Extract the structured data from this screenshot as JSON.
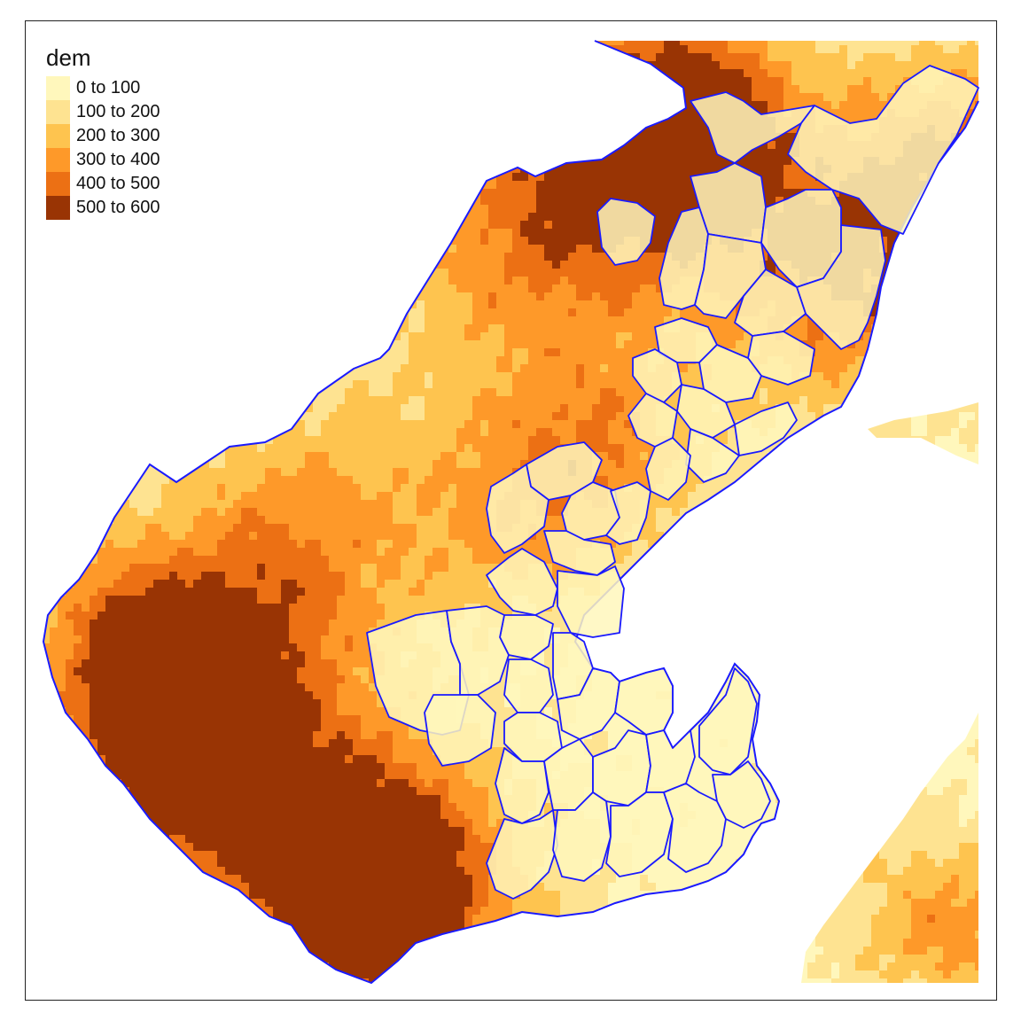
{
  "legend": {
    "title": "dem",
    "classes": [
      {
        "label": "0 to 100",
        "color": "#FFF7BC"
      },
      {
        "label": "100 to 200",
        "color": "#FEE391"
      },
      {
        "label": "200 to 300",
        "color": "#FEC44F"
      },
      {
        "label": "300 to 400",
        "color": "#FE9929"
      },
      {
        "label": "400 to 500",
        "color": "#EC7014"
      },
      {
        "label": "500 to 600",
        "color": "#993404"
      }
    ]
  },
  "colors": {
    "boundary": "#1a1aff",
    "frame": "#222222",
    "water": "#ffffff"
  }
}
